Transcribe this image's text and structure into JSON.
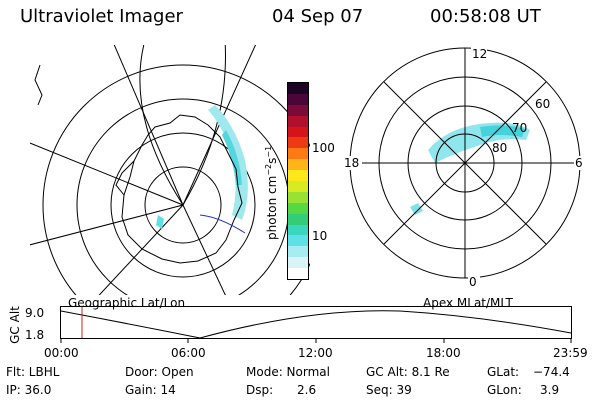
{
  "header": {
    "instrument": "Ultraviolet Imager",
    "date": "04 Sep 07",
    "time": "00:58:08 UT"
  },
  "left_panel": {
    "caption": "Geographic Lat/Lon"
  },
  "right_panel": {
    "caption": "Apex MLat/MLT",
    "mlt_labels": [
      "12",
      "18",
      "6",
      "0"
    ],
    "mlat_labels": [
      "60",
      "70",
      "80"
    ]
  },
  "colorbar": {
    "unit_label": "photon cm",
    "unit_sup1": "−2",
    "unit_mid": "s",
    "unit_sup2": "−1",
    "ticks": [
      "100",
      "10"
    ],
    "colors": [
      "#ffffff",
      "#d8f4f6",
      "#a6ecf0",
      "#5fe0e6",
      "#3ad7c0",
      "#33cc77",
      "#55d844",
      "#99e233",
      "#d8ea22",
      "#ffe81a",
      "#ffb51a",
      "#ff7a14",
      "#ee3a14",
      "#d41418",
      "#b0102c",
      "#7c0a38",
      "#4a0638",
      "#1c0424"
    ]
  },
  "altitude_plot": {
    "y_label": "GC Alt",
    "y_ticks": [
      "9.0",
      "1.8"
    ],
    "x_ticks": [
      "00:00",
      "06:00",
      "12:00",
      "18:00",
      "23:59"
    ],
    "marker_time": "00:58"
  },
  "footer": {
    "filter": "Flt: LBHL",
    "ip": "IP: 36.0",
    "door": "Door: Open",
    "gain": "Gain: 14",
    "mode": "Mode: Normal",
    "dsp_label": "Dsp:",
    "dsp_value": "2.6",
    "gc_alt": "GC Alt: 8.1 Re",
    "seq": "Seq: 39",
    "glat_label": "GLat:",
    "glat_value": "−74.4",
    "glon_label": "GLon:",
    "glon_value": "3.9"
  }
}
